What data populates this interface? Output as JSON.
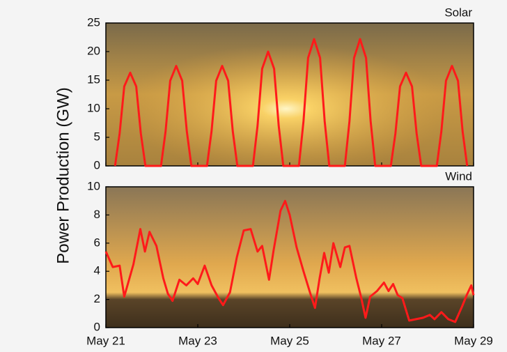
{
  "chart_data": [
    {
      "type": "line",
      "title": "Solar",
      "ylabel": "Power Production (GW)",
      "xlim": [
        21,
        29
      ],
      "ylim": [
        0,
        25
      ],
      "yticks": [
        0,
        5,
        10,
        15,
        20,
        25
      ],
      "x": [
        21.2,
        21.3,
        21.4,
        21.53,
        21.66,
        21.76,
        21.86,
        22.2,
        22.3,
        22.4,
        22.53,
        22.66,
        22.76,
        22.86,
        23.2,
        23.3,
        23.4,
        23.53,
        23.66,
        23.76,
        23.86,
        24.2,
        24.3,
        24.4,
        24.53,
        24.66,
        24.76,
        24.86,
        25.2,
        25.3,
        25.4,
        25.53,
        25.66,
        25.76,
        25.86,
        26.2,
        26.3,
        26.4,
        26.53,
        26.66,
        26.76,
        26.86,
        27.2,
        27.3,
        27.4,
        27.53,
        27.66,
        27.76,
        27.86,
        28.2,
        28.3,
        28.4,
        28.53,
        28.66,
        28.76,
        28.86
      ],
      "series": [
        {
          "color": "#ff1a1a",
          "values": [
            0,
            5.7,
            13.9,
            16.3,
            13.9,
            5.7,
            0,
            0,
            6.1,
            14.9,
            17.5,
            14.9,
            6.1,
            0,
            0,
            6.1,
            14.9,
            17.5,
            14.9,
            6.1,
            0,
            0,
            7,
            17,
            20,
            17,
            7,
            0,
            0,
            7.8,
            18.9,
            22.2,
            18.9,
            7.8,
            0,
            0,
            7.8,
            18.9,
            22.2,
            18.9,
            7.8,
            0,
            0,
            5.7,
            13.9,
            16.3,
            13.9,
            5.7,
            0,
            0,
            6.1,
            14.9,
            17.5,
            14.9,
            6.1,
            0
          ]
        }
      ]
    },
    {
      "type": "line",
      "title": "Wind",
      "xlim": [
        21,
        29
      ],
      "ylim": [
        0,
        10
      ],
      "yticks": [
        0,
        2,
        4,
        6,
        8,
        10
      ],
      "xticks": [
        {
          "value": 21,
          "label": "May 21"
        },
        {
          "value": 23,
          "label": "May 23"
        },
        {
          "value": 25,
          "label": "May 25"
        },
        {
          "value": 27,
          "label": "May 27"
        },
        {
          "value": 29,
          "label": "May 29"
        }
      ],
      "x": [
        21.0,
        21.15,
        21.3,
        21.4,
        21.6,
        21.75,
        21.85,
        21.95,
        22.1,
        22.25,
        22.35,
        22.45,
        22.6,
        22.75,
        22.9,
        23.0,
        23.15,
        23.3,
        23.45,
        23.55,
        23.7,
        23.85,
        24.0,
        24.15,
        24.3,
        24.4,
        24.55,
        24.65,
        24.8,
        24.9,
        25.0,
        25.15,
        25.3,
        25.45,
        25.55,
        25.65,
        25.75,
        25.85,
        25.95,
        26.1,
        26.2,
        26.3,
        26.45,
        26.55,
        26.65,
        26.75,
        26.9,
        27.05,
        27.15,
        27.25,
        27.35,
        27.45,
        27.6,
        27.75,
        27.9,
        28.05,
        28.15,
        28.3,
        28.45,
        28.6,
        28.75,
        28.85,
        28.95,
        29.0
      ],
      "series": [
        {
          "color": "#ff1a1a",
          "values": [
            5.4,
            4.3,
            4.4,
            2.2,
            4.5,
            7.0,
            5.4,
            6.8,
            5.8,
            3.5,
            2.4,
            1.9,
            3.4,
            3.0,
            3.5,
            3.1,
            4.4,
            3.0,
            2.1,
            1.6,
            2.5,
            5.0,
            6.9,
            7.0,
            5.4,
            5.8,
            3.4,
            5.5,
            8.3,
            9.0,
            8.0,
            5.7,
            4.0,
            2.4,
            1.4,
            3.5,
            5.3,
            3.9,
            6.0,
            4.3,
            5.7,
            5.8,
            3.5,
            2.2,
            0.7,
            2.2,
            2.6,
            3.2,
            2.6,
            3.1,
            2.3,
            2.1,
            0.5,
            0.6,
            0.7,
            0.9,
            0.6,
            1.1,
            0.6,
            0.4,
            1.5,
            2.3,
            3.0,
            2.3
          ]
        }
      ]
    }
  ]
}
